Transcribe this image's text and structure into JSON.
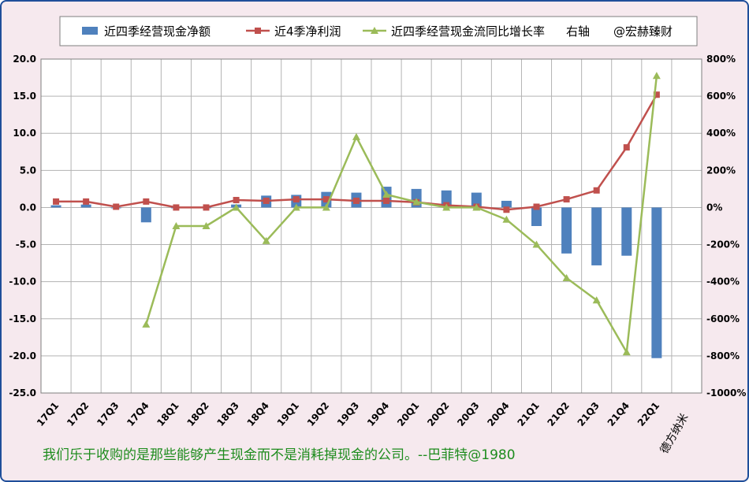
{
  "chart_data": {
    "type": "bar",
    "categories": [
      "17Q1",
      "17Q2",
      "17Q3",
      "17Q4",
      "18Q1",
      "18Q2",
      "18Q3",
      "18Q4",
      "19Q1",
      "19Q2",
      "19Q3",
      "19Q4",
      "20Q1",
      "20Q2",
      "20Q3",
      "20Q4",
      "21Q1",
      "21Q2",
      "21Q3",
      "21Q4",
      "22Q1"
    ],
    "ylim": [
      -25,
      20
    ],
    "y_ticks": [
      "20.0",
      "15.0",
      "10.0",
      "5.0",
      "0.0",
      "-5.0",
      "-10.0",
      "-15.0",
      "-20.0",
      "-25.0"
    ],
    "y2lim": [
      -1000,
      800
    ],
    "y2_ticks": [
      "800%",
      "600%",
      "400%",
      "200%",
      "0%",
      "-200%",
      "-400%",
      "-600%",
      "-800%",
      "-1000%"
    ],
    "grid": true,
    "legend_position": "top",
    "series": [
      {
        "name": "近四季经营现金净额",
        "type": "bar",
        "axis": "left",
        "color": "#4f81bd",
        "values": [
          0.3,
          0.4,
          0.0,
          -2.0,
          0.0,
          0.0,
          0.4,
          1.6,
          1.7,
          2.1,
          2.0,
          2.8,
          2.5,
          2.3,
          2.0,
          0.9,
          -2.5,
          -6.2,
          -7.8,
          -6.5,
          -20.3
        ]
      },
      {
        "name": "近4季净利润",
        "type": "line",
        "axis": "left",
        "color": "#c0504d",
        "marker": "square",
        "values": [
          0.8,
          0.8,
          0.1,
          0.8,
          0.0,
          0.0,
          1.0,
          0.9,
          1.1,
          1.1,
          0.9,
          0.9,
          0.7,
          0.3,
          0.1,
          -0.3,
          0.1,
          1.1,
          2.3,
          8.1,
          15.2
        ]
      },
      {
        "name": "近四季经营现金流同比增长率",
        "type": "line",
        "axis": "right",
        "color": "#9bbb59",
        "marker": "triangle",
        "values": [
          null,
          null,
          null,
          -630,
          -100,
          -100,
          0,
          -180,
          0,
          0,
          380,
          70,
          30,
          0,
          0,
          -65,
          -200,
          -380,
          -500,
          -780,
          710
        ]
      }
    ]
  },
  "legend": {
    "right_axis_note": "右轴",
    "watermark": "@宏赫臻财"
  },
  "corner_label": "德方纳米",
  "footer_quote": "我们乐于收购的是那些能够产生现金而不是消耗掉现金的公司。--巴菲特@1980",
  "colors": {
    "background": "#f6e9ee",
    "border": "#1f4e9a",
    "grid": "#b3b3b3",
    "footer_text": "#1e8c1e"
  }
}
